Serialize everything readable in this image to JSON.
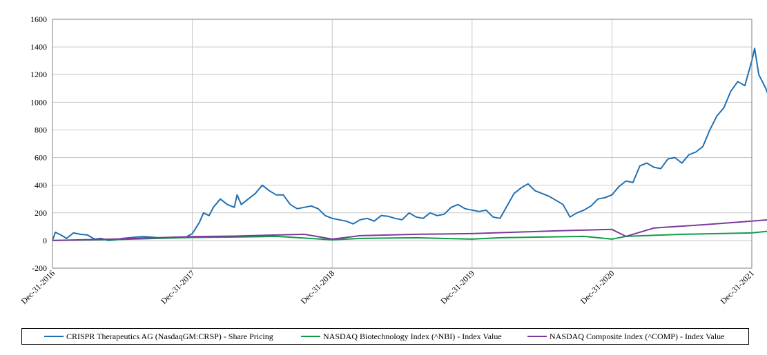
{
  "chart_data": {
    "type": "line",
    "title": "",
    "xlabel": "",
    "ylabel": "",
    "ylim": [
      -200,
      1600
    ],
    "yticks": [
      -200,
      0,
      200,
      400,
      600,
      800,
      1000,
      1200,
      1400,
      1600
    ],
    "xticks": [
      "Dec-31-2016",
      "Dec-31-2017",
      "Dec-31-2018",
      "Dec-31-2019",
      "Dec-31-2020",
      "Dec-31-2021"
    ],
    "x_unit": "years since Dec-31-2016",
    "grid": true,
    "legend_position": "bottom",
    "series": [
      {
        "name": "CRISPR Therapeutics AG (NasdaqGM:CRSP) - Share Pricing",
        "color": "#1f6fb2",
        "points": [
          [
            0,
            0
          ],
          [
            0.02,
            60
          ],
          [
            0.06,
            40
          ],
          [
            0.1,
            15
          ],
          [
            0.15,
            55
          ],
          [
            0.2,
            45
          ],
          [
            0.25,
            40
          ],
          [
            0.3,
            10
          ],
          [
            0.35,
            15
          ],
          [
            0.4,
            0
          ],
          [
            0.45,
            5
          ],
          [
            0.5,
            15
          ],
          [
            0.55,
            20
          ],
          [
            0.6,
            25
          ],
          [
            0.65,
            28
          ],
          [
            0.7,
            25
          ],
          [
            0.75,
            20
          ],
          [
            0.8,
            20
          ],
          [
            0.85,
            22
          ],
          [
            0.9,
            25
          ],
          [
            0.95,
            22
          ],
          [
            1.0,
            50
          ],
          [
            1.05,
            130
          ],
          [
            1.08,
            200
          ],
          [
            1.12,
            180
          ],
          [
            1.15,
            240
          ],
          [
            1.2,
            300
          ],
          [
            1.25,
            260
          ],
          [
            1.3,
            240
          ],
          [
            1.32,
            330
          ],
          [
            1.35,
            260
          ],
          [
            1.4,
            300
          ],
          [
            1.45,
            340
          ],
          [
            1.5,
            400
          ],
          [
            1.55,
            360
          ],
          [
            1.6,
            330
          ],
          [
            1.65,
            330
          ],
          [
            1.7,
            260
          ],
          [
            1.75,
            230
          ],
          [
            1.8,
            240
          ],
          [
            1.85,
            250
          ],
          [
            1.9,
            230
          ],
          [
            1.95,
            180
          ],
          [
            2.0,
            160
          ],
          [
            2.05,
            150
          ],
          [
            2.1,
            140
          ],
          [
            2.15,
            120
          ],
          [
            2.2,
            150
          ],
          [
            2.25,
            160
          ],
          [
            2.3,
            140
          ],
          [
            2.35,
            180
          ],
          [
            2.4,
            175
          ],
          [
            2.45,
            160
          ],
          [
            2.5,
            150
          ],
          [
            2.55,
            200
          ],
          [
            2.6,
            170
          ],
          [
            2.65,
            160
          ],
          [
            2.7,
            200
          ],
          [
            2.75,
            180
          ],
          [
            2.8,
            190
          ],
          [
            2.85,
            240
          ],
          [
            2.9,
            260
          ],
          [
            2.95,
            230
          ],
          [
            3.0,
            220
          ],
          [
            3.05,
            210
          ],
          [
            3.1,
            220
          ],
          [
            3.15,
            170
          ],
          [
            3.2,
            160
          ],
          [
            3.25,
            250
          ],
          [
            3.3,
            340
          ],
          [
            3.35,
            380
          ],
          [
            3.4,
            410
          ],
          [
            3.45,
            360
          ],
          [
            3.5,
            340
          ],
          [
            3.55,
            320
          ],
          [
            3.6,
            290
          ],
          [
            3.65,
            260
          ],
          [
            3.7,
            170
          ],
          [
            3.75,
            200
          ],
          [
            3.8,
            220
          ],
          [
            3.85,
            250
          ],
          [
            3.9,
            300
          ],
          [
            3.95,
            310
          ],
          [
            4.0,
            330
          ],
          [
            4.05,
            390
          ],
          [
            4.1,
            430
          ],
          [
            4.15,
            420
          ],
          [
            4.2,
            540
          ],
          [
            4.25,
            560
          ],
          [
            4.3,
            530
          ],
          [
            4.35,
            520
          ],
          [
            4.4,
            590
          ],
          [
            4.45,
            600
          ],
          [
            4.5,
            560
          ],
          [
            4.55,
            620
          ],
          [
            4.6,
            640
          ],
          [
            4.65,
            680
          ],
          [
            4.7,
            800
          ],
          [
            4.75,
            900
          ],
          [
            4.8,
            960
          ],
          [
            4.85,
            1080
          ],
          [
            4.9,
            1150
          ],
          [
            4.95,
            1120
          ],
          [
            5.0,
            1300
          ],
          [
            5.02,
            1390
          ],
          [
            5.05,
            1200
          ],
          [
            5.1,
            1100
          ],
          [
            5.15,
            960
          ],
          [
            5.2,
            820
          ],
          [
            5.25,
            850
          ],
          [
            5.3,
            760
          ],
          [
            5.35,
            800
          ],
          [
            5.4,
            720
          ],
          [
            5.45,
            650
          ],
          [
            5.5,
            700
          ],
          [
            5.55,
            820
          ],
          [
            5.6,
            860
          ],
          [
            5.65,
            780
          ],
          [
            5.7,
            700
          ],
          [
            5.75,
            680
          ],
          [
            5.8,
            700
          ],
          [
            5.85,
            780
          ],
          [
            5.9,
            920
          ],
          [
            5.92,
            1040
          ],
          [
            5.95,
            860
          ],
          [
            6.0,
            830
          ],
          [
            6.05,
            780
          ],
          [
            6.1,
            860
          ],
          [
            6.15,
            800
          ],
          [
            6.2,
            760
          ],
          [
            6.25,
            740
          ],
          [
            6.3,
            760
          ],
          [
            6.35,
            700
          ],
          [
            6.4,
            640
          ],
          [
            6.45,
            600
          ],
          [
            6.5,
            570
          ],
          [
            6.55,
            540
          ],
          [
            6.6,
            480
          ],
          [
            6.65,
            430
          ],
          [
            6.7,
            400
          ],
          [
            6.75,
            450
          ],
          [
            6.8,
            470
          ],
          [
            6.85,
            440
          ],
          [
            6.9,
            420
          ],
          [
            6.95,
            450
          ],
          [
            7.0,
            440
          ]
        ]
      },
      {
        "name": "NASDAQ Biotechnology Index (^NBI) - Index Value",
        "color": "#0f9b48",
        "points": [
          [
            0,
            0
          ],
          [
            0.5,
            8
          ],
          [
            1.0,
            22
          ],
          [
            1.3,
            25
          ],
          [
            1.6,
            30
          ],
          [
            2.0,
            5
          ],
          [
            2.2,
            15
          ],
          [
            2.6,
            20
          ],
          [
            3.0,
            10
          ],
          [
            3.2,
            20
          ],
          [
            3.5,
            25
          ],
          [
            3.8,
            30
          ],
          [
            4.0,
            10
          ],
          [
            4.1,
            30
          ],
          [
            4.5,
            45
          ],
          [
            5.0,
            55
          ],
          [
            5.2,
            75
          ],
          [
            5.5,
            60
          ],
          [
            6.0,
            70
          ],
          [
            6.3,
            80
          ],
          [
            6.6,
            78
          ],
          [
            6.8,
            60
          ],
          [
            7.0,
            70
          ]
        ]
      },
      {
        "name": "NASDAQ Composite Index (^COMP) - Index Value",
        "color": "#7a3a9a",
        "points": [
          [
            0,
            0
          ],
          [
            0.5,
            12
          ],
          [
            1.0,
            28
          ],
          [
            1.3,
            32
          ],
          [
            1.6,
            40
          ],
          [
            1.8,
            45
          ],
          [
            2.0,
            10
          ],
          [
            2.2,
            35
          ],
          [
            2.6,
            45
          ],
          [
            3.0,
            50
          ],
          [
            3.3,
            60
          ],
          [
            3.6,
            70
          ],
          [
            4.0,
            80
          ],
          [
            4.1,
            30
          ],
          [
            4.3,
            90
          ],
          [
            4.6,
            110
          ],
          [
            5.0,
            140
          ],
          [
            5.3,
            165
          ],
          [
            5.6,
            175
          ],
          [
            6.0,
            180
          ],
          [
            6.3,
            190
          ],
          [
            6.6,
            195
          ],
          [
            6.8,
            185
          ],
          [
            7.0,
            200
          ]
        ]
      }
    ]
  }
}
